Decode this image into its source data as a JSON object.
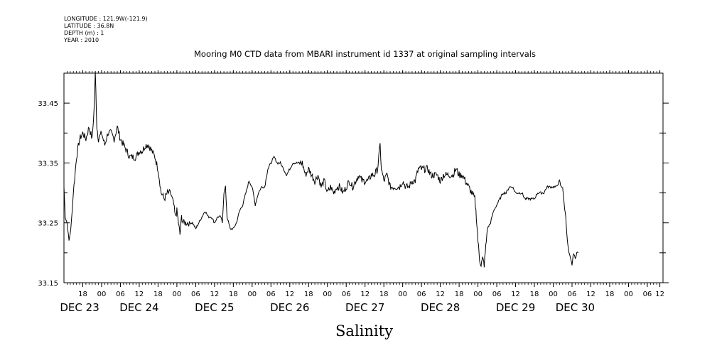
{
  "meta_lines": [
    "LONGITUDE : 121.9W(-121.9)",
    "LATITUDE : 36.8N",
    "DEPTH (m) : 1",
    "YEAR : 2010"
  ],
  "colors": {
    "line": "#000000",
    "frame": "#000000",
    "background": "#ffffff"
  },
  "chart_data": {
    "type": "line",
    "title": "Mooring M0 CTD data from MBARI instrument id 1337 at original sampling intervals",
    "xlabel": "Salinity",
    "ylabel": "",
    "grid": false,
    "x_units": "hours since 2010-12-22 12:00",
    "xlim": [
      0,
      191
    ],
    "ylim": [
      33.15,
      33.5
    ],
    "y_ticks": [
      33.15,
      33.25,
      33.35,
      33.45
    ],
    "y_tick_labels": [
      "33.15",
      "33.25",
      "33.35",
      "33.45"
    ],
    "x_ticks": [
      {
        "t": 6,
        "label": "18"
      },
      {
        "t": 12,
        "label": "00"
      },
      {
        "t": 18,
        "label": "06"
      },
      {
        "t": 24,
        "label": "12"
      },
      {
        "t": 30,
        "label": "18"
      },
      {
        "t": 36,
        "label": "00"
      },
      {
        "t": 42,
        "label": "06"
      },
      {
        "t": 48,
        "label": "12"
      },
      {
        "t": 54,
        "label": "18"
      },
      {
        "t": 60,
        "label": "00"
      },
      {
        "t": 66,
        "label": "06"
      },
      {
        "t": 72,
        "label": "12"
      },
      {
        "t": 78,
        "label": "18"
      },
      {
        "t": 84,
        "label": "00"
      },
      {
        "t": 90,
        "label": "06"
      },
      {
        "t": 96,
        "label": "12"
      },
      {
        "t": 102,
        "label": "18"
      },
      {
        "t": 108,
        "label": "00"
      },
      {
        "t": 114,
        "label": "06"
      },
      {
        "t": 120,
        "label": "12"
      },
      {
        "t": 126,
        "label": "18"
      },
      {
        "t": 132,
        "label": "00"
      },
      {
        "t": 138,
        "label": "06"
      },
      {
        "t": 144,
        "label": "12"
      },
      {
        "t": 150,
        "label": "18"
      },
      {
        "t": 156,
        "label": "00"
      },
      {
        "t": 162,
        "label": "06"
      },
      {
        "t": 168,
        "label": "12"
      },
      {
        "t": 174,
        "label": "18"
      },
      {
        "t": 180,
        "label": "00"
      },
      {
        "t": 186,
        "label": "06"
      },
      {
        "t": 190,
        "label": "12"
      }
    ],
    "day_labels": [
      {
        "t": 5,
        "label": "DEC 23"
      },
      {
        "t": 24,
        "label": "DEC 24"
      },
      {
        "t": 48,
        "label": "DEC 25"
      },
      {
        "t": 72,
        "label": "DEC 26"
      },
      {
        "t": 96,
        "label": "DEC 27"
      },
      {
        "t": 120,
        "label": "DEC 28"
      },
      {
        "t": 144,
        "label": "DEC 29"
      },
      {
        "t": 163,
        "label": "DEC 30"
      }
    ],
    "series": [
      {
        "values": [
          [
            0.0,
            33.31
          ],
          [
            0.4,
            33.26
          ],
          [
            1.0,
            33.25
          ],
          [
            1.6,
            33.22
          ],
          [
            2.2,
            33.24
          ],
          [
            3.0,
            33.3
          ],
          [
            4.0,
            33.36
          ],
          [
            5.0,
            33.39
          ],
          [
            6.0,
            33.4
          ],
          [
            7.0,
            33.39
          ],
          [
            8.0,
            33.41
          ],
          [
            9.0,
            33.39
          ],
          [
            9.6,
            33.44
          ],
          [
            10.0,
            33.5
          ],
          [
            10.5,
            33.41
          ],
          [
            11.0,
            33.39
          ],
          [
            12.0,
            33.4
          ],
          [
            13.0,
            33.38
          ],
          [
            14.0,
            33.4
          ],
          [
            15.0,
            33.4
          ],
          [
            16.0,
            33.39
          ],
          [
            17.0,
            33.41
          ],
          [
            18.0,
            33.39
          ],
          [
            19.0,
            33.38
          ],
          [
            20.0,
            33.37
          ],
          [
            21.0,
            33.36
          ],
          [
            22.0,
            33.36
          ],
          [
            23.0,
            33.36
          ],
          [
            24.0,
            33.37
          ],
          [
            25.0,
            33.37
          ],
          [
            26.0,
            33.38
          ],
          [
            27.0,
            33.38
          ],
          [
            28.0,
            33.37
          ],
          [
            29.0,
            33.36
          ],
          [
            30.0,
            33.34
          ],
          [
            31.0,
            33.3
          ],
          [
            32.0,
            33.29
          ],
          [
            33.0,
            33.3
          ],
          [
            34.0,
            33.3
          ],
          [
            35.0,
            33.28
          ],
          [
            35.5,
            33.26
          ],
          [
            36.0,
            33.27
          ],
          [
            36.5,
            33.25
          ],
          [
            37.0,
            33.23
          ],
          [
            37.5,
            33.26
          ],
          [
            38.0,
            33.25
          ],
          [
            39.0,
            33.25
          ],
          [
            40.0,
            33.25
          ],
          [
            41.0,
            33.25
          ],
          [
            42.0,
            33.24
          ],
          [
            43.0,
            33.25
          ],
          [
            44.0,
            33.26
          ],
          [
            45.0,
            33.27
          ],
          [
            46.0,
            33.26
          ],
          [
            47.0,
            33.26
          ],
          [
            48.0,
            33.25
          ],
          [
            49.0,
            33.26
          ],
          [
            50.0,
            33.26
          ],
          [
            50.5,
            33.25
          ],
          [
            51.0,
            33.3
          ],
          [
            51.5,
            33.31
          ],
          [
            52.0,
            33.26
          ],
          [
            53.0,
            33.24
          ],
          [
            54.0,
            33.24
          ],
          [
            55.0,
            33.25
          ],
          [
            56.0,
            33.27
          ],
          [
            57.0,
            33.28
          ],
          [
            58.0,
            33.3
          ],
          [
            59.0,
            33.32
          ],
          [
            60.0,
            33.31
          ],
          [
            61.0,
            33.28
          ],
          [
            62.0,
            33.3
          ],
          [
            63.0,
            33.31
          ],
          [
            64.0,
            33.31
          ],
          [
            65.0,
            33.34
          ],
          [
            66.0,
            33.35
          ],
          [
            67.0,
            33.36
          ],
          [
            68.0,
            33.35
          ],
          [
            69.0,
            33.35
          ],
          [
            70.0,
            33.34
          ],
          [
            71.0,
            33.33
          ],
          [
            72.0,
            33.34
          ],
          [
            73.0,
            33.35
          ],
          [
            74.0,
            33.35
          ],
          [
            75.0,
            33.35
          ],
          [
            76.0,
            33.35
          ],
          [
            77.0,
            33.33
          ],
          [
            78.0,
            33.34
          ],
          [
            79.0,
            33.33
          ],
          [
            80.0,
            33.32
          ],
          [
            81.0,
            33.33
          ],
          [
            82.0,
            33.31
          ],
          [
            83.0,
            33.32
          ],
          [
            84.0,
            33.3
          ],
          [
            85.0,
            33.31
          ],
          [
            86.0,
            33.3
          ],
          [
            87.0,
            33.31
          ],
          [
            88.0,
            33.31
          ],
          [
            89.0,
            33.3
          ],
          [
            90.0,
            33.31
          ],
          [
            91.0,
            33.32
          ],
          [
            92.0,
            33.31
          ],
          [
            93.0,
            33.32
          ],
          [
            94.0,
            33.33
          ],
          [
            95.0,
            33.32
          ],
          [
            96.0,
            33.32
          ],
          [
            97.0,
            33.32
          ],
          [
            98.0,
            33.33
          ],
          [
            99.0,
            33.33
          ],
          [
            100.0,
            33.34
          ],
          [
            100.8,
            33.38
          ],
          [
            101.2,
            33.34
          ],
          [
            102.0,
            33.32
          ],
          [
            103.0,
            33.33
          ],
          [
            104.0,
            33.31
          ],
          [
            105.0,
            33.31
          ],
          [
            106.0,
            33.31
          ],
          [
            107.0,
            33.31
          ],
          [
            108.0,
            33.32
          ],
          [
            109.0,
            33.31
          ],
          [
            110.0,
            33.31
          ],
          [
            111.0,
            33.32
          ],
          [
            112.0,
            33.32
          ],
          [
            113.0,
            33.34
          ],
          [
            114.0,
            33.34
          ],
          [
            115.0,
            33.34
          ],
          [
            116.0,
            33.34
          ],
          [
            117.0,
            33.33
          ],
          [
            118.0,
            33.33
          ],
          [
            119.0,
            33.33
          ],
          [
            120.0,
            33.32
          ],
          [
            121.0,
            33.33
          ],
          [
            122.0,
            33.33
          ],
          [
            123.0,
            33.33
          ],
          [
            124.0,
            33.33
          ],
          [
            125.0,
            33.34
          ],
          [
            126.0,
            33.33
          ],
          [
            127.0,
            33.33
          ],
          [
            128.0,
            33.32
          ],
          [
            129.0,
            33.31
          ],
          [
            130.0,
            33.3
          ],
          [
            131.0,
            33.29
          ],
          [
            131.5,
            33.26
          ],
          [
            132.0,
            33.22
          ],
          [
            132.5,
            33.19
          ],
          [
            133.0,
            33.18
          ],
          [
            133.5,
            33.19
          ],
          [
            134.0,
            33.18
          ],
          [
            134.5,
            33.21
          ],
          [
            135.0,
            33.24
          ],
          [
            136.0,
            33.25
          ],
          [
            137.0,
            33.27
          ],
          [
            138.0,
            33.28
          ],
          [
            139.0,
            33.29
          ],
          [
            140.0,
            33.3
          ],
          [
            141.0,
            33.3
          ],
          [
            142.0,
            33.31
          ],
          [
            143.0,
            33.31
          ],
          [
            144.0,
            33.3
          ],
          [
            145.0,
            33.3
          ],
          [
            146.0,
            33.3
          ],
          [
            147.0,
            33.29
          ],
          [
            148.0,
            33.29
          ],
          [
            149.0,
            33.29
          ],
          [
            150.0,
            33.29
          ],
          [
            151.0,
            33.3
          ],
          [
            152.0,
            33.3
          ],
          [
            153.0,
            33.3
          ],
          [
            154.0,
            33.31
          ],
          [
            155.0,
            33.31
          ],
          [
            156.0,
            33.31
          ],
          [
            157.0,
            33.31
          ],
          [
            158.0,
            33.32
          ],
          [
            158.5,
            33.31
          ],
          [
            159.0,
            33.31
          ],
          [
            159.5,
            33.28
          ],
          [
            160.0,
            33.26
          ],
          [
            160.5,
            33.22
          ],
          [
            161.0,
            33.2
          ],
          [
            161.5,
            33.19
          ],
          [
            162.0,
            33.18
          ],
          [
            162.5,
            33.2
          ],
          [
            163.0,
            33.19
          ],
          [
            163.5,
            33.2
          ],
          [
            164.0,
            33.2
          ]
        ]
      }
    ]
  }
}
